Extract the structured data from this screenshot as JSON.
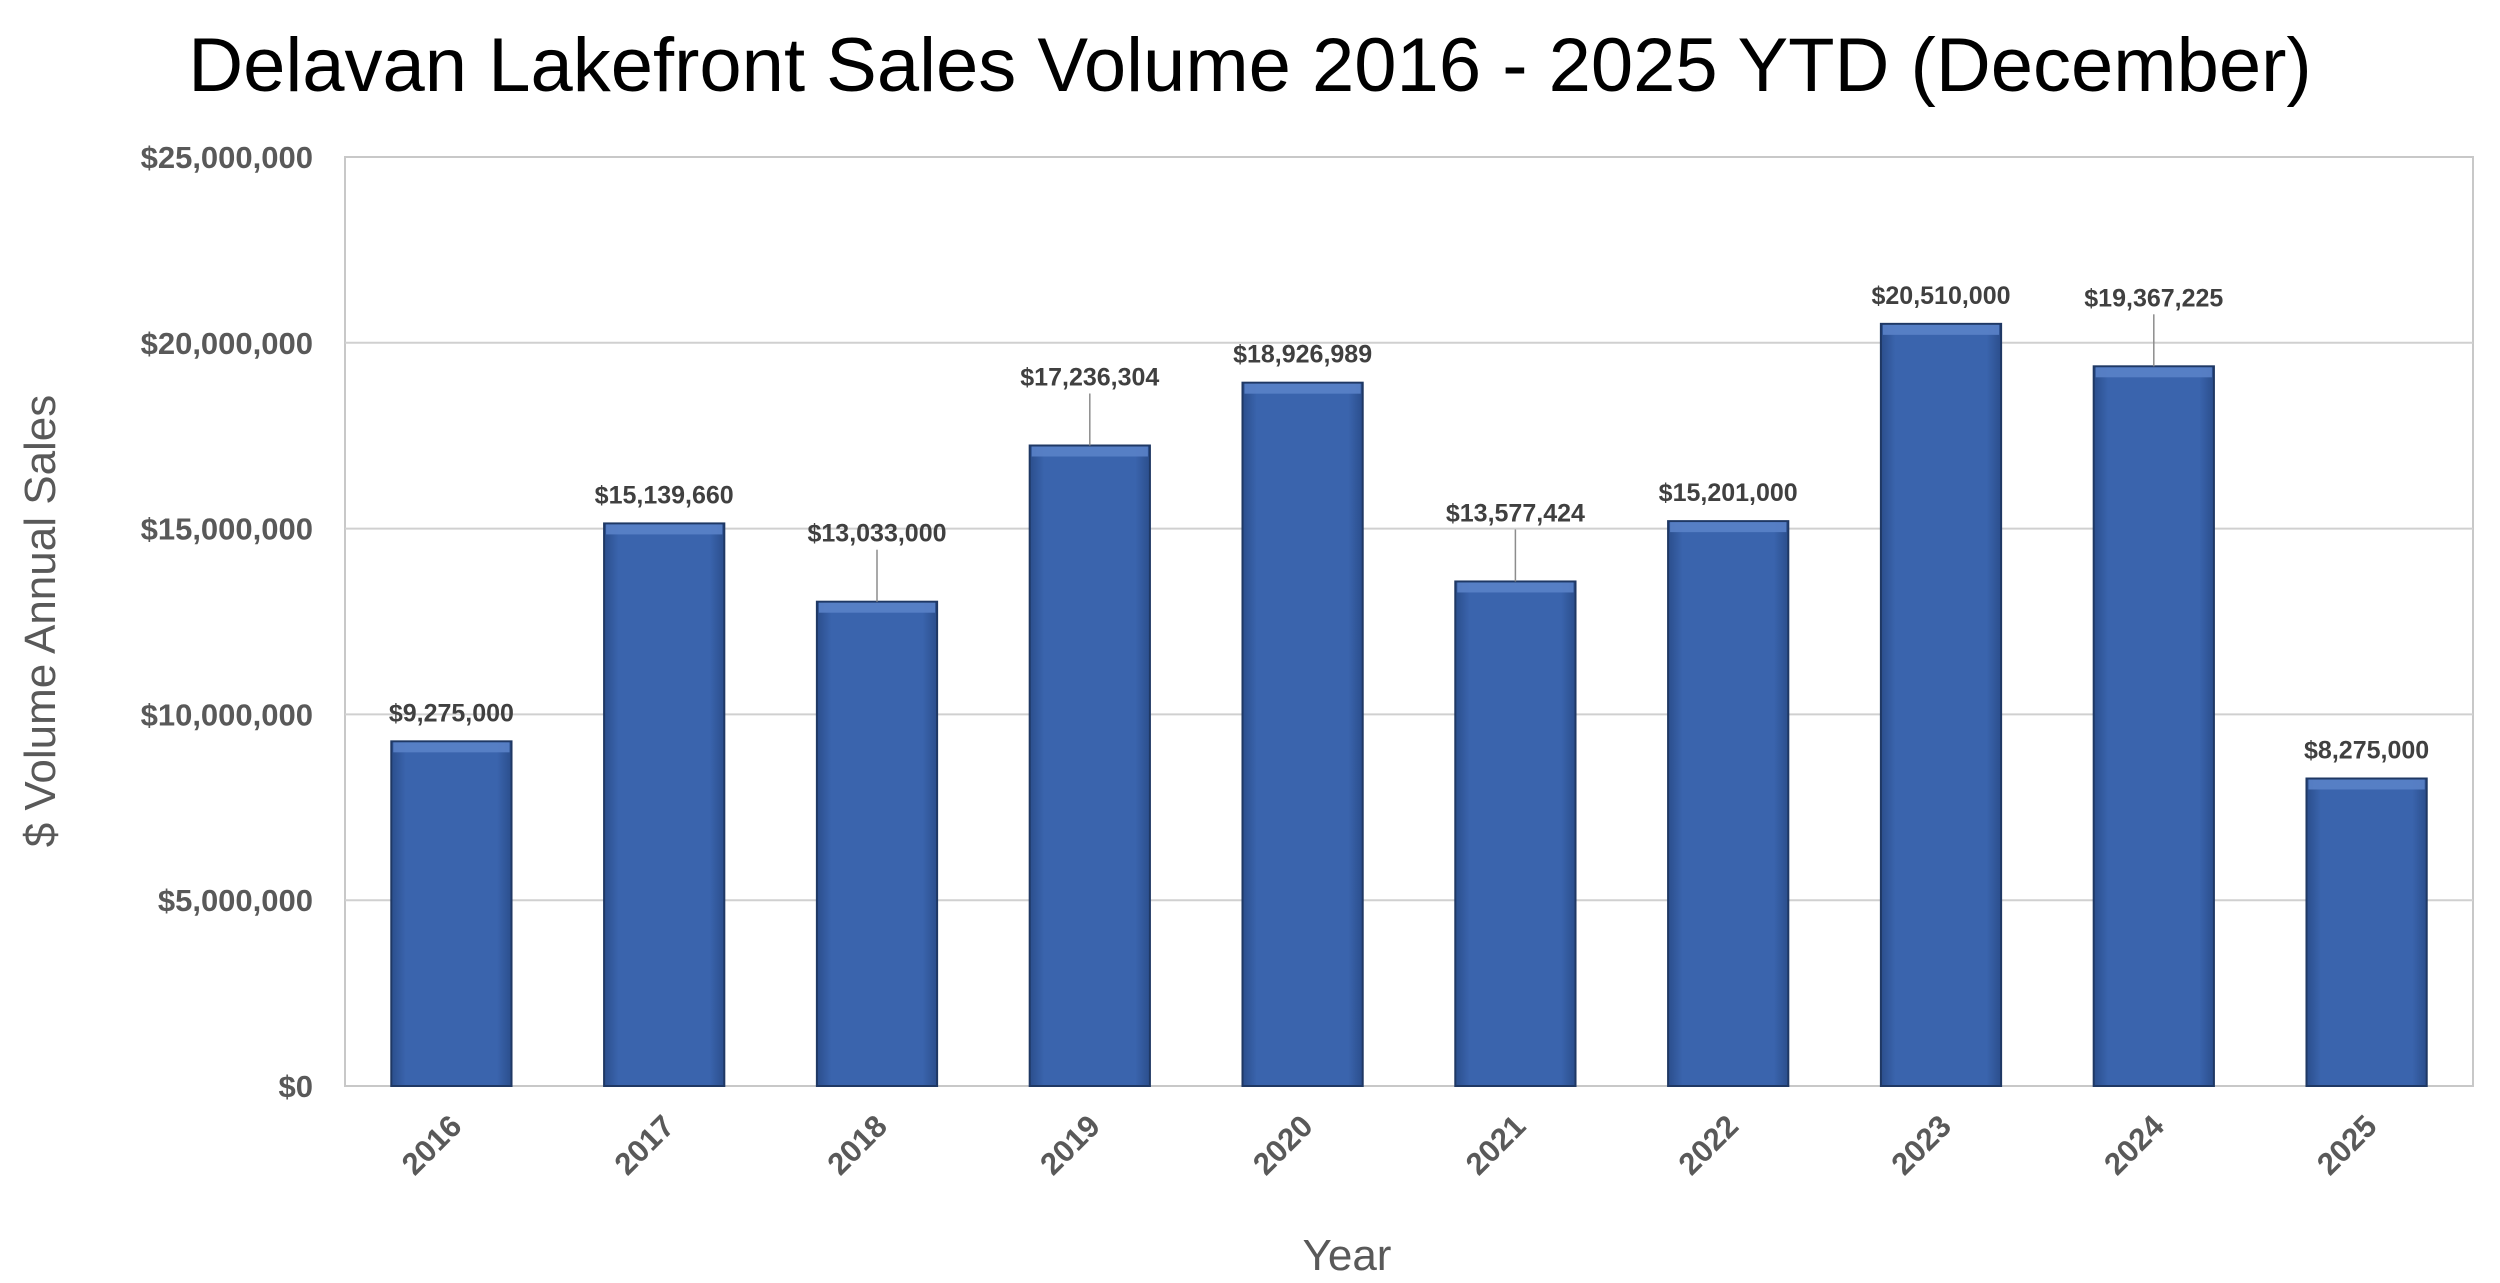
{
  "chart_data": {
    "type": "bar",
    "title": "Delavan Lakefront Sales Volume 2016 - 2025 YTD (December)",
    "xlabel": "Year",
    "ylabel": "$ Volume Annual Sales",
    "categories": [
      "2016",
      "2017",
      "2018",
      "2019",
      "2020",
      "2021",
      "2022",
      "2023",
      "2024",
      "2025"
    ],
    "values": [
      9275000,
      15139660,
      13033000,
      17236304,
      18926989,
      13577424,
      15201000,
      20510000,
      19367225,
      8275000
    ],
    "data_labels": [
      "$9,275,000",
      "$15,139,660",
      "$13,033,000",
      "$17,236,304",
      "$18,926,989",
      "$13,577,424",
      "$15,201,000",
      "$20,510,000",
      "$19,367,225",
      "$8,275,000"
    ],
    "ylim": [
      0,
      25000000
    ],
    "yticks": [
      0,
      5000000,
      10000000,
      15000000,
      20000000,
      25000000
    ],
    "ytick_labels": [
      "$0",
      "$5,000,000",
      "$10,000,000",
      "$15,000,000",
      "$20,000,000",
      "$25,000,000"
    ],
    "grid": true,
    "legend": "none",
    "colors": {
      "bar": "#3760A7",
      "bar_edge": "#1F3864",
      "grid": "#D0D0D0"
    }
  }
}
